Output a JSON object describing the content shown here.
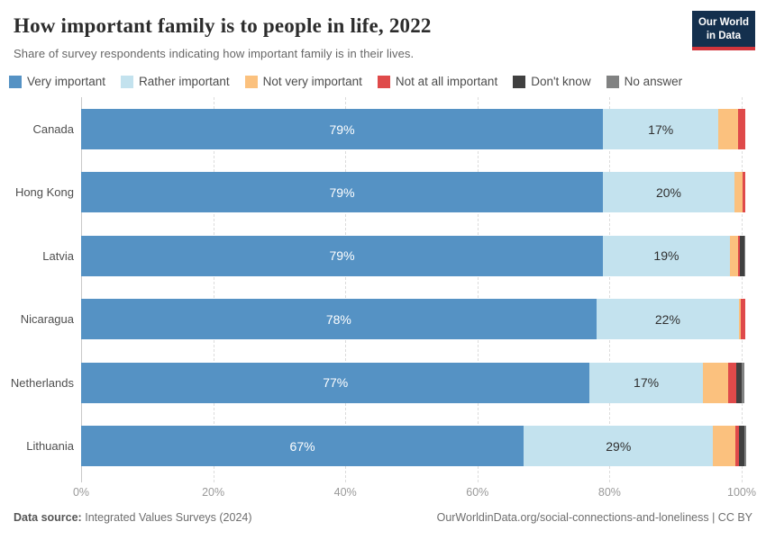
{
  "header": {
    "title": "How important family is to people in life, 2022",
    "subtitle": "Share of survey respondents indicating how important family is in their lives.",
    "logo_line1": "Our World",
    "logo_line2": "in Data"
  },
  "footer": {
    "source_label": "Data source:",
    "source_value": "Integrated Values Surveys (2024)",
    "credit": "OurWorldinData.org/social-connections-and-loneliness | CC BY"
  },
  "colors": {
    "very_important": "#5592c4",
    "rather_important": "#c3e2ee",
    "not_very_important": "#fbc17e",
    "not_at_all_important": "#df4a4a",
    "dont_know": "#404040",
    "no_answer": "#818282",
    "logo_navy": "#14304e",
    "logo_red": "#d2353c"
  },
  "chart_data": {
    "type": "bar",
    "orientation": "horizontal",
    "stacked": true,
    "title": "How important family is to people in life, 2022",
    "categories": [
      "Canada",
      "Hong Kong",
      "Latvia",
      "Nicaragua",
      "Netherlands",
      "Lithuania"
    ],
    "series": [
      {
        "name": "Very important",
        "color": "#5592c4",
        "values": [
          79,
          79,
          79,
          78,
          77,
          67
        ],
        "labels": [
          "79%",
          "79%",
          "79%",
          "78%",
          "77%",
          "67%"
        ],
        "label_style": "on-dark"
      },
      {
        "name": "Rather important",
        "color": "#c3e2ee",
        "values": [
          17.5,
          19.9,
          19.2,
          21.6,
          17.1,
          28.7
        ],
        "labels": [
          "17%",
          "20%",
          "19%",
          "22%",
          "17%",
          "29%"
        ],
        "label_style": "on-light"
      },
      {
        "name": "Not very important",
        "color": "#fbc17e",
        "values": [
          3.0,
          1.2,
          1.2,
          0.3,
          3.9,
          3.4
        ],
        "labels": [
          "",
          "",
          "",
          "",
          "",
          ""
        ],
        "label_style": "on-light"
      },
      {
        "name": "Not at all important",
        "color": "#df4a4a",
        "values": [
          1.0,
          0.4,
          0.3,
          0.7,
          1.2,
          0.5
        ],
        "labels": [
          "",
          "",
          "",
          "",
          "",
          ""
        ],
        "label_style": "on-dark"
      },
      {
        "name": "Don't know",
        "color": "#404040",
        "values": [
          0,
          0,
          0.7,
          0,
          0.8,
          0.8
        ],
        "labels": [
          "",
          "",
          "",
          "",
          "",
          ""
        ],
        "label_style": "on-dark"
      },
      {
        "name": "No answer",
        "color": "#818282",
        "values": [
          0,
          0,
          0.2,
          0,
          0.4,
          0.3
        ],
        "labels": [
          "",
          "",
          "",
          "",
          "",
          ""
        ],
        "label_style": "on-dark"
      }
    ],
    "x_ticks": {
      "values": [
        0,
        20,
        40,
        60,
        80,
        100
      ],
      "labels": [
        "0%",
        "20%",
        "40%",
        "60%",
        "80%",
        "100%"
      ]
    },
    "xlim": [
      0,
      100
    ],
    "grid": "vertical-dashed",
    "legend_position": "top"
  }
}
